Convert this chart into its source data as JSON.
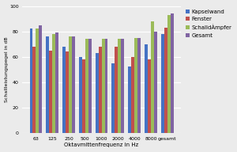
{
  "categories": [
    "63",
    "125",
    "250",
    "500",
    "1000",
    "2000",
    "4000",
    "8000",
    "gesamt"
  ],
  "series": {
    "Kapselwand": [
      82,
      76,
      68,
      60,
      63,
      55,
      52,
      70,
      78
    ],
    "Fenster": [
      68,
      65,
      64,
      58,
      68,
      68,
      60,
      58,
      83
    ],
    "SchalldÀmpfer": [
      82,
      78,
      76,
      74,
      74,
      74,
      75,
      88,
      93
    ],
    "Gesamt": [
      85,
      79,
      76,
      74,
      74,
      74,
      75,
      80,
      94
    ]
  },
  "colors": {
    "Kapselwand": "#4472C4",
    "Fenster": "#C0504D",
    "SchalldÀmpfer": "#9BBB59",
    "Gesamt": "#8064A2"
  },
  "xlabel": "Oktavmittenfrequenz in Hz",
  "ylabel": "Schallleistungspegel in dB",
  "ylim": [
    0,
    100
  ],
  "yticks": [
    0,
    20,
    40,
    60,
    80,
    100
  ],
  "background_color": "#EBEBEB",
  "plot_bg": "#EBEBEB",
  "grid_color": "#FFFFFF",
  "bar_width": 0.19
}
